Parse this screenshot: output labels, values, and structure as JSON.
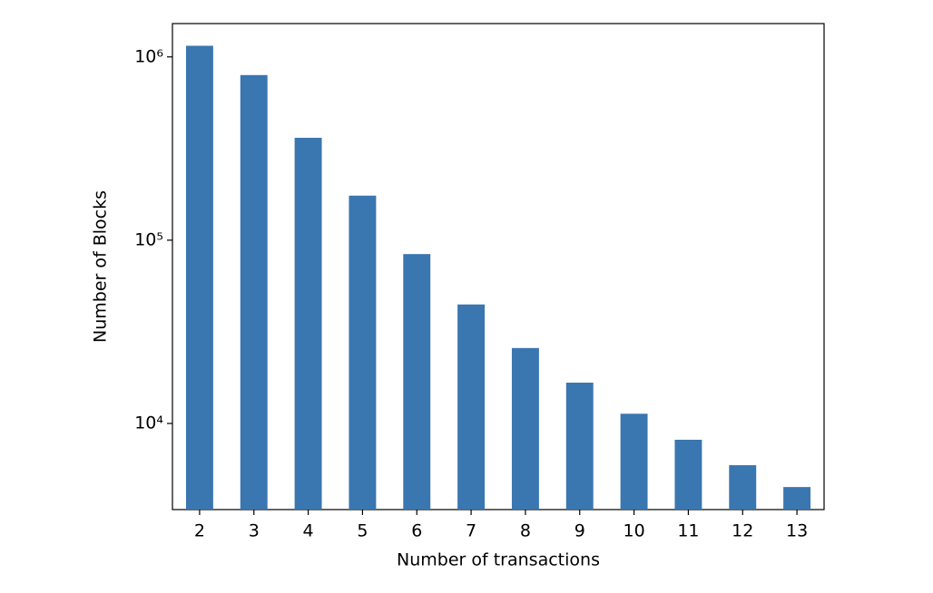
{
  "chart_data": {
    "type": "bar",
    "xlabel": "Number of transactions",
    "ylabel": "Number of Blocks",
    "categories": [
      "2",
      "3",
      "4",
      "5",
      "6",
      "7",
      "8",
      "9",
      "10",
      "11",
      "12",
      "13"
    ],
    "values": [
      1150000,
      796000,
      362000,
      175000,
      84000,
      44600,
      25800,
      16700,
      11300,
      8150,
      5920,
      4500
    ],
    "color": "#3a76b0",
    "log_y": true,
    "ylim": [
      3390,
      1520000
    ],
    "yticks": [
      {
        "value": 10000,
        "label": "10⁴"
      },
      {
        "value": 100000,
        "label": "10⁵"
      },
      {
        "value": 1000000,
        "label": "10⁶"
      }
    ],
    "grid": false
  }
}
